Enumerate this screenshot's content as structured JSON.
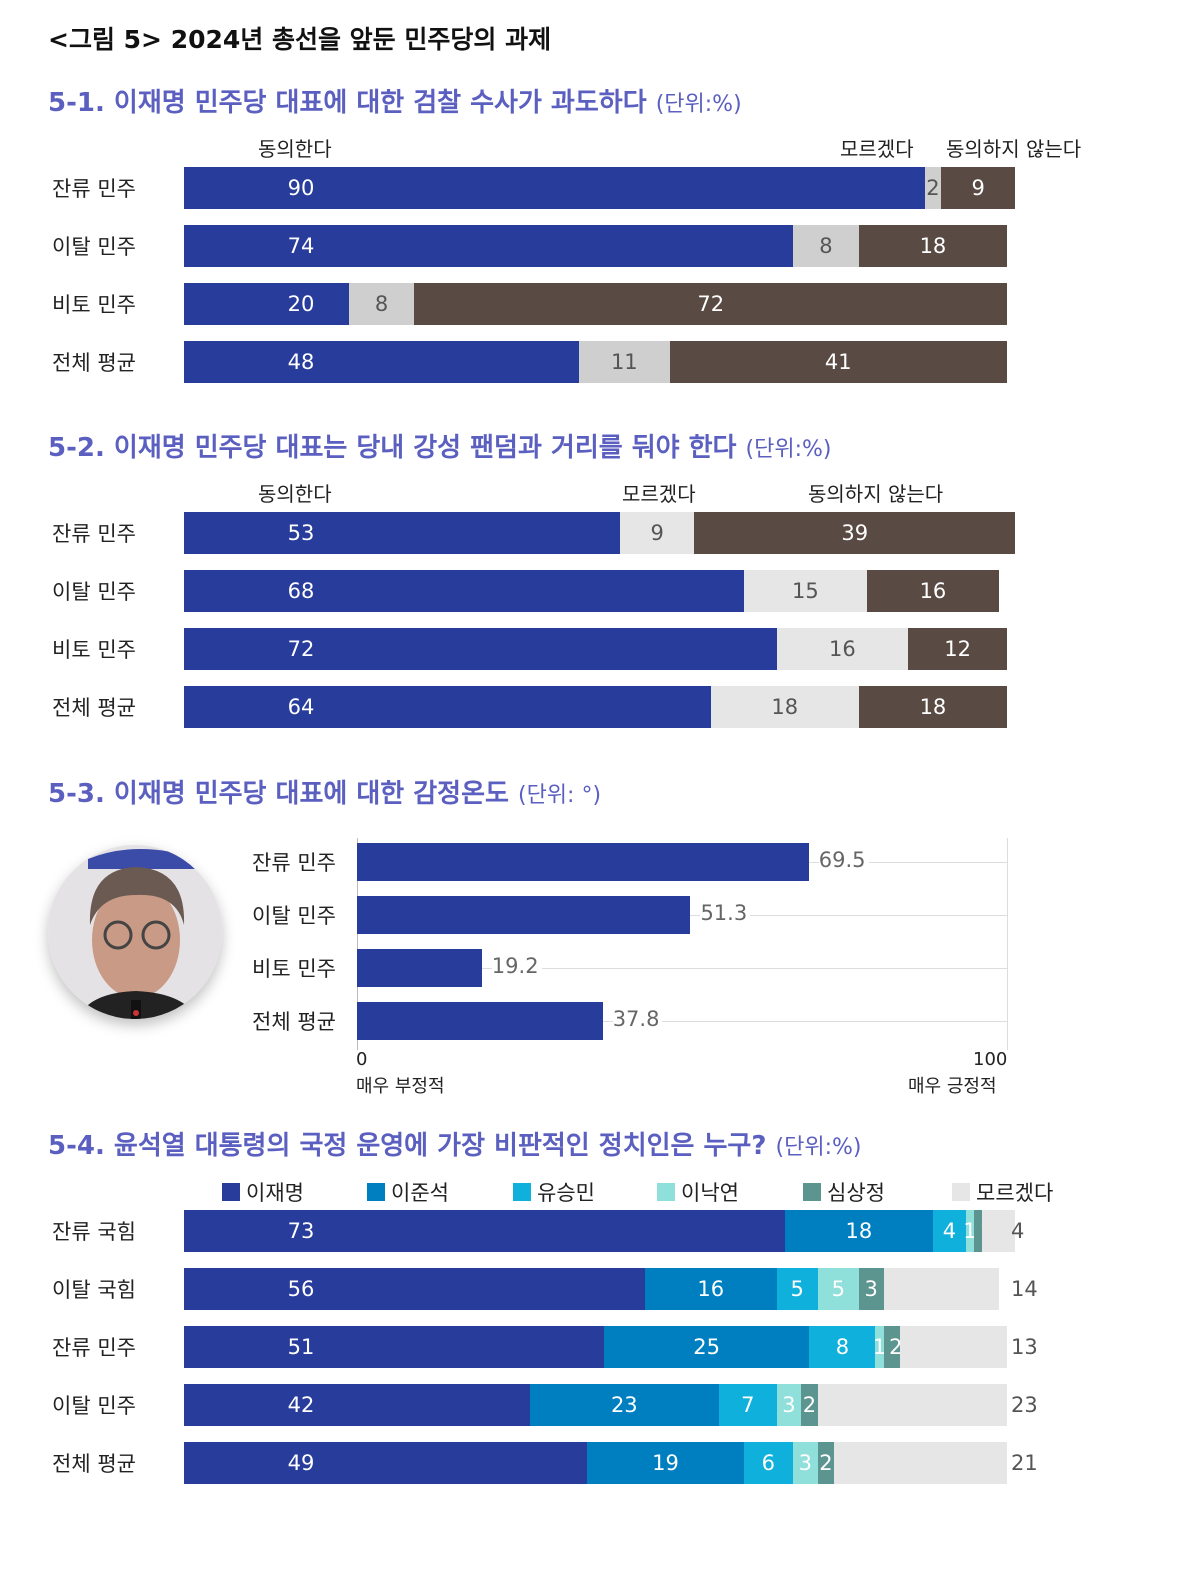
{
  "figure_title": "<그림 5> 2024년 총선을 앞둔 민주당의 과제",
  "colors": {
    "agree": "#283c9c",
    "unknown_1": "#cfcfcf",
    "unknown_2": "#e6e6e6",
    "disagree": "#594a43",
    "lee_jm": "#283c9c",
    "lee_js": "#007fc0",
    "yoo": "#10b0dc",
    "lee_ny": "#8fdfdb",
    "sim": "#5c9490",
    "unknown_4": "#e6e6e6"
  },
  "chart_data": [
    {
      "type": "bar",
      "stacked": true,
      "orientation": "horizontal",
      "title": "5-1. 이재명 민주당 대표에 대한 검찰 수사가 과도하다",
      "unit": "(단위:%)",
      "categories": [
        "잔류 민주",
        "이탈 민주",
        "비토 민주",
        "전체 평균"
      ],
      "series": [
        {
          "name": "동의한다",
          "values": [
            90,
            74,
            20,
            48
          ]
        },
        {
          "name": "모르겠다",
          "values": [
            2,
            8,
            8,
            11
          ]
        },
        {
          "name": "동의하지 않는다",
          "values": [
            9,
            18,
            72,
            41
          ]
        }
      ]
    },
    {
      "type": "bar",
      "stacked": true,
      "orientation": "horizontal",
      "title": "5-2. 이재명 민주당 대표는 당내 강성 팬덤과 거리를 둬야 한다",
      "unit": "(단위:%)",
      "categories": [
        "잔류 민주",
        "이탈 민주",
        "비토 민주",
        "전체 평균"
      ],
      "series": [
        {
          "name": "동의한다",
          "values": [
            53,
            68,
            72,
            64
          ]
        },
        {
          "name": "모르겠다",
          "values": [
            9,
            15,
            16,
            18
          ]
        },
        {
          "name": "동의하지 않는다",
          "values": [
            39,
            16,
            12,
            18
          ]
        }
      ]
    },
    {
      "type": "bar",
      "orientation": "horizontal",
      "title": "5-3. 이재명 민주당 대표에 대한 감정온도",
      "unit": "(단위: °)",
      "categories": [
        "잔류 민주",
        "이탈 민주",
        "비토 민주",
        "전체 평균"
      ],
      "values": [
        69.5,
        51.3,
        19.2,
        37.8
      ],
      "xlim": [
        0,
        100
      ],
      "x_min_label": "0",
      "x_max_label": "100",
      "x_min_caption": "매우 부정적",
      "x_max_caption": "매우 긍정적",
      "grid": true
    },
    {
      "type": "bar",
      "stacked": true,
      "orientation": "horizontal",
      "title": "5-4. 윤석열 대통령의 국정 운영에 가장 비판적인 정치인은 누구?",
      "unit": "(단위:%)",
      "legend": "top",
      "categories": [
        "잔류 국힘",
        "이탈 국힘",
        "잔류 민주",
        "이탈 민주",
        "전체 평균"
      ],
      "series": [
        {
          "name": "이재명",
          "values": [
            73,
            56,
            51,
            42,
            49
          ]
        },
        {
          "name": "이준석",
          "values": [
            18,
            16,
            25,
            23,
            19
          ]
        },
        {
          "name": "유승민",
          "values": [
            4,
            5,
            8,
            7,
            6
          ]
        },
        {
          "name": "이낙연",
          "values": [
            1,
            5,
            1,
            3,
            3
          ]
        },
        {
          "name": "심상정",
          "values": [
            1,
            3,
            2,
            2,
            2
          ]
        },
        {
          "name": "모르겠다",
          "values": [
            4,
            14,
            13,
            23,
            21
          ]
        }
      ]
    }
  ]
}
